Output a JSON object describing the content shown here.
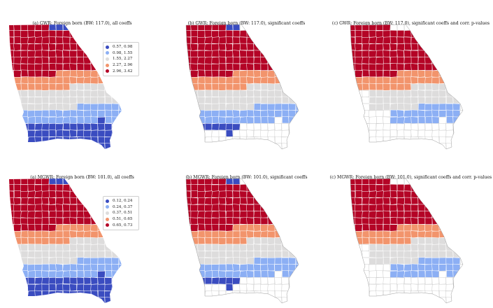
{
  "colors": {
    "c1": "#3a4cc0",
    "c2": "#8caff4",
    "c3": "#dddcdc",
    "c4": "#f2946c",
    "c5": "#b40426",
    "blank": "#ffffff",
    "border": "#ffffff",
    "outline": "#444444"
  },
  "rows": [
    {
      "panels": [
        {
          "title": "(a) GWR: Foreign born (BW: 117.0), all coeffs",
          "mode": "all"
        },
        {
          "title": "(b) GWR: Foreign born (BW: 117.0), significant coeffs",
          "mode": "sig"
        },
        {
          "title": "(c) GWR: Foreign born (BW: 117.0), significant coeffs and corr. p-values",
          "mode": "corr"
        }
      ],
      "legend": {
        "items": [
          {
            "label": "0.57, 0.98",
            "color_key": "c1"
          },
          {
            "label": "0.98, 1.55",
            "color_key": "c2"
          },
          {
            "label": "1.55, 2.27",
            "color_key": "c3"
          },
          {
            "label": "2.27, 2.96",
            "color_key": "c4"
          },
          {
            "label": "2.96, 3.42",
            "color_key": "c5"
          }
        ]
      }
    },
    {
      "panels": [
        {
          "title": "(a) MGWR: Foreign born (BW: 101.0), all coeffs",
          "mode": "all"
        },
        {
          "title": "(b) MGWR: Foreign born (BW: 101.0), significant coeffs",
          "mode": "sig"
        },
        {
          "title": "(c) MGWR: Foreign born (BW: 101.0), significant coeffs and corr. p-values",
          "mode": "corr"
        }
      ],
      "legend": {
        "items": [
          {
            "label": "0.12, 0.24",
            "color_key": "c1"
          },
          {
            "label": "0.24, 0.37",
            "color_key": "c2"
          },
          {
            "label": "0.37, 0.51",
            "color_key": "c3"
          },
          {
            "label": "0.51, 0.65",
            "color_key": "c4"
          },
          {
            "label": "0.65, 0.73",
            "color_key": "c5"
          }
        ]
      }
    }
  ]
}
